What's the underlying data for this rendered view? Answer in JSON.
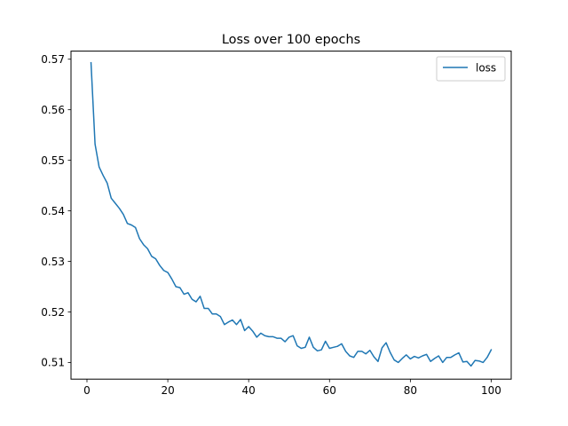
{
  "chart_data": {
    "type": "line",
    "title": "Loss over 100 epochs",
    "xlabel": "",
    "ylabel": "",
    "xlim": [
      -3.95,
      104.95
    ],
    "ylim": [
      0.5067,
      0.5716
    ],
    "xticks": [
      0,
      20,
      40,
      60,
      80,
      100
    ],
    "yticks": [
      0.51,
      0.52,
      0.53,
      0.54,
      0.55,
      0.56,
      0.57
    ],
    "ytick_labels": [
      "0.51",
      "0.52",
      "0.53",
      "0.54",
      "0.55",
      "0.56",
      "0.57"
    ],
    "grid": false,
    "legend": {
      "position": "top-right",
      "entries": [
        "loss"
      ]
    },
    "series": [
      {
        "name": "loss",
        "color": "#1f77b4",
        "x": [
          1,
          2,
          3,
          4,
          5,
          6,
          7,
          8,
          9,
          10,
          11,
          12,
          13,
          14,
          15,
          16,
          17,
          18,
          19,
          20,
          21,
          22,
          23,
          24,
          25,
          26,
          27,
          28,
          29,
          30,
          31,
          32,
          33,
          34,
          35,
          36,
          37,
          38,
          39,
          40,
          41,
          42,
          43,
          44,
          45,
          46,
          47,
          48,
          49,
          50,
          51,
          52,
          53,
          54,
          55,
          56,
          57,
          58,
          59,
          60,
          61,
          62,
          63,
          64,
          65,
          66,
          67,
          68,
          69,
          70,
          71,
          72,
          73,
          74,
          75,
          76,
          77,
          78,
          79,
          80,
          81,
          82,
          83,
          84,
          85,
          86,
          87,
          88,
          89,
          90,
          91,
          92,
          93,
          94,
          95,
          96,
          97,
          98,
          99,
          100
        ],
        "values": [
          0.5693,
          0.5532,
          0.5487,
          0.547,
          0.5455,
          0.5425,
          0.5415,
          0.5405,
          0.5393,
          0.5375,
          0.5372,
          0.5367,
          0.5345,
          0.5333,
          0.5325,
          0.531,
          0.5305,
          0.5292,
          0.5282,
          0.5278,
          0.5265,
          0.525,
          0.5248,
          0.5235,
          0.5238,
          0.5225,
          0.522,
          0.5231,
          0.5207,
          0.5207,
          0.5196,
          0.5196,
          0.5191,
          0.5175,
          0.518,
          0.5184,
          0.5175,
          0.5185,
          0.5163,
          0.5171,
          0.5162,
          0.515,
          0.5158,
          0.5153,
          0.5151,
          0.5151,
          0.5148,
          0.5148,
          0.5141,
          0.515,
          0.5153,
          0.5133,
          0.5128,
          0.513,
          0.515,
          0.513,
          0.5123,
          0.5125,
          0.5142,
          0.5128,
          0.513,
          0.5132,
          0.5137,
          0.5122,
          0.5113,
          0.511,
          0.5122,
          0.5122,
          0.5117,
          0.5124,
          0.5111,
          0.5102,
          0.5129,
          0.5139,
          0.512,
          0.5105,
          0.51,
          0.5108,
          0.5115,
          0.5107,
          0.5112,
          0.5109,
          0.5113,
          0.5116,
          0.5102,
          0.5108,
          0.5113,
          0.51,
          0.511,
          0.511,
          0.5115,
          0.5119,
          0.5101,
          0.5102,
          0.5093,
          0.5104,
          0.5103,
          0.51,
          0.511,
          0.5125
        ]
      }
    ]
  }
}
